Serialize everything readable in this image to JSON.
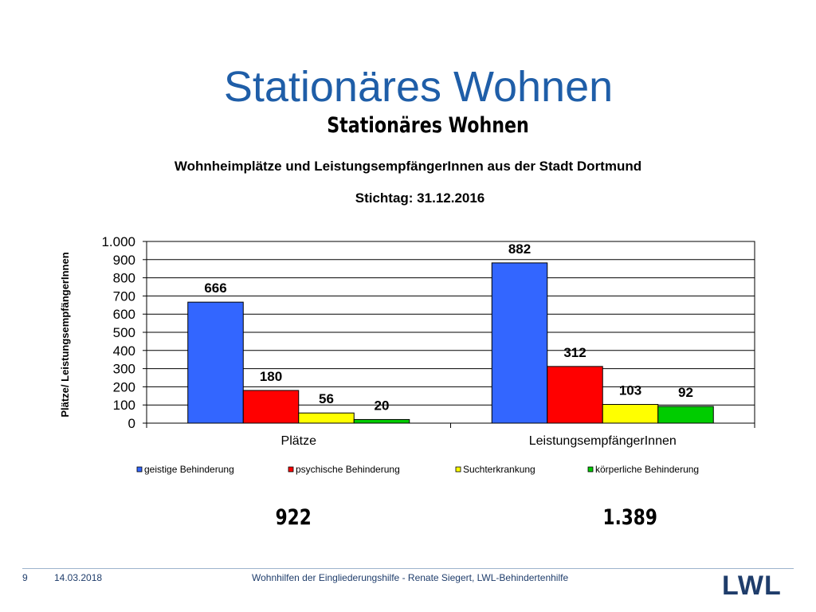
{
  "slide": {
    "title": "Stationäres Wohnen",
    "inner_title": "Stationäres Wohnen"
  },
  "chart_data": {
    "type": "bar",
    "title": "Wohnheimplätze und LeistungsempfängerInnen  aus der Stadt  Dortmund",
    "subtitle": "Stichtag: 31.12.2016",
    "xlabel": "",
    "ylabel": "Plätze/ LeistungsempfängerInnen",
    "ylim": [
      0,
      1000
    ],
    "yticks": [
      0,
      100,
      200,
      300,
      400,
      500,
      600,
      700,
      800,
      900,
      1000
    ],
    "ytick_labels": [
      "0",
      "100",
      "200",
      "300",
      "400",
      "500",
      "600",
      "700",
      "800",
      "900",
      "1.000"
    ],
    "grid": true,
    "legend_position": "bottom",
    "categories": [
      "Plätze",
      "LeistungsempfängerInnen"
    ],
    "series": [
      {
        "name": "geistige Behinderung",
        "values": [
          666,
          882
        ],
        "color": "#3366ff"
      },
      {
        "name": "psychische Behinderung",
        "values": [
          180,
          312
        ],
        "color": "#ff0000"
      },
      {
        "name": "Suchterkrankung",
        "values": [
          56,
          103
        ],
        "color": "#ffff00"
      },
      {
        "name": "körperliche Behinderung",
        "values": [
          20,
          92
        ],
        "color": "#00cc00"
      }
    ],
    "totals": [
      "922",
      "1.389"
    ]
  },
  "footer": {
    "page_number": "9",
    "date": "14.03.2018",
    "text": "Wohnhilfen der Eingliederungshilfe - Renate Siegert, LWL-Behindertenhilfe",
    "logo_text": "LWL"
  }
}
